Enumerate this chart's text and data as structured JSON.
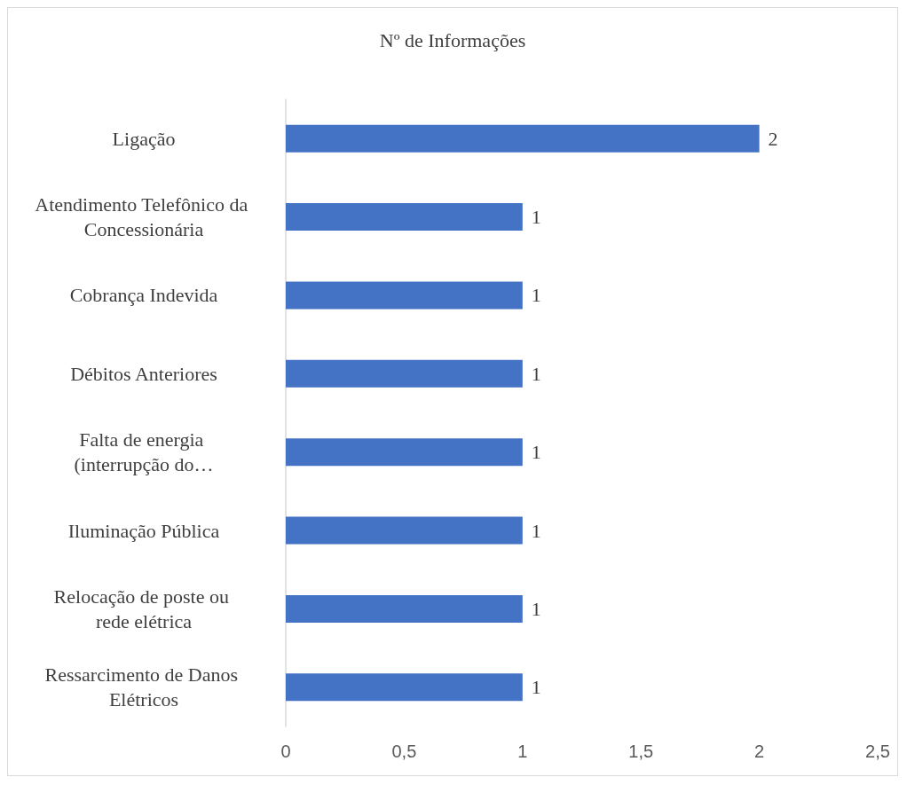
{
  "chart_data": {
    "type": "bar",
    "orientation": "horizontal",
    "title": "Nº de Informações",
    "categories": [
      "Ligação",
      "Atendimento Telefônico da Concessionária",
      "Cobrança Indevida",
      "Débitos Anteriores",
      "Falta de energia (interrupção do…",
      "Iluminação Pública",
      "Relocação de poste ou rede elétrica",
      "Ressarcimento de Danos Elétricos"
    ],
    "values": [
      2,
      1,
      1,
      1,
      1,
      1,
      1,
      1
    ],
    "color": "#4472c4",
    "xlim": [
      0,
      2.5
    ],
    "xticks": [
      0,
      {
        "value": 0.5,
        "label": "0,5"
      },
      1,
      {
        "value": 1.5,
        "label": "1,5"
      },
      2,
      {
        "value": 2.5,
        "label": "2,5"
      }
    ],
    "data_labels": true,
    "grid": false
  }
}
